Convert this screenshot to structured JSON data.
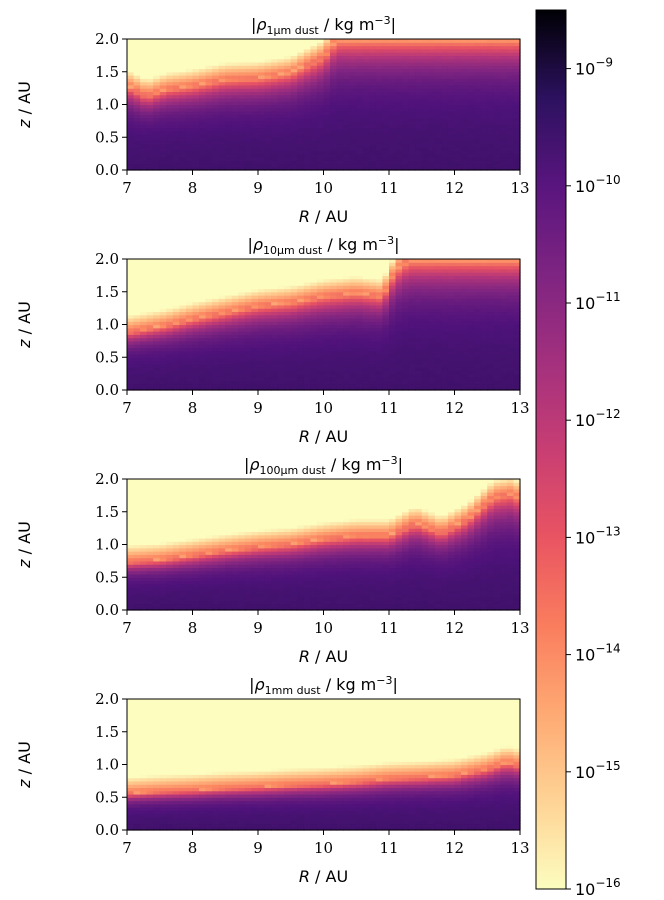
{
  "figure": {
    "colormap": "magma",
    "scale": "log"
  },
  "chart_data": [
    {
      "type": "heatmap",
      "title": "|ρ1μm dust / kg m−3|",
      "title_parts": {
        "open": "|",
        "rho": "ρ",
        "sub": "1μm dust",
        "unit": " / kg m",
        "exp": "−3",
        "close": "|"
      },
      "xlabel": "R / AU",
      "ylabel": "z / AU",
      "xlim": [
        7,
        13
      ],
      "ylim": [
        0.0,
        2.0
      ],
      "xticks": [
        "7",
        "8",
        "9",
        "10",
        "11",
        "12",
        "13"
      ],
      "yticks": [
        "0.0",
        "0.5",
        "1.0",
        "1.5",
        "2.0"
      ],
      "surface_R": [
        7.0,
        7.3,
        7.6,
        8.0,
        8.5,
        9.0,
        9.5,
        10.0,
        10.2,
        10.5,
        11.0,
        11.5,
        12.0,
        12.5,
        13.0
      ],
      "surface_z": [
        1.3,
        1.15,
        1.25,
        1.3,
        1.4,
        1.42,
        1.5,
        1.75,
        2.0,
        2.0,
        2.0,
        2.0,
        2.0,
        2.0,
        2.0
      ],
      "midplane_log_rho": -10.1
    },
    {
      "type": "heatmap",
      "title": "|ρ10μm dust / kg m−3|",
      "title_parts": {
        "open": "|",
        "rho": "ρ",
        "sub": "10μm dust",
        "unit": " / kg m",
        "exp": "−3",
        "close": "|"
      },
      "xlabel": "R / AU",
      "ylabel": "z / AU",
      "xlim": [
        7,
        13
      ],
      "ylim": [
        0.0,
        2.0
      ],
      "xticks": [
        "7",
        "8",
        "9",
        "10",
        "11",
        "12",
        "13"
      ],
      "yticks": [
        "0.0",
        "0.5",
        "1.0",
        "1.5",
        "2.0"
      ],
      "surface_R": [
        7.0,
        7.3,
        7.6,
        8.0,
        8.5,
        9.0,
        9.5,
        10.0,
        10.5,
        10.9,
        11.1,
        11.3,
        12.0,
        12.5,
        13.0
      ],
      "surface_z": [
        0.9,
        0.95,
        1.0,
        1.1,
        1.2,
        1.3,
        1.35,
        1.45,
        1.5,
        1.45,
        1.85,
        2.0,
        2.0,
        2.0,
        2.0
      ],
      "midplane_log_rho": -10.1
    },
    {
      "type": "heatmap",
      "title": "|ρ100μm dust / kg m−3|",
      "title_parts": {
        "open": "|",
        "rho": "ρ",
        "sub": "100μm dust",
        "unit": " / kg m",
        "exp": "−3",
        "close": "|"
      },
      "xlabel": "R / AU",
      "ylabel": "z / AU",
      "xticks": [
        "7",
        "8",
        "9",
        "10",
        "11",
        "12",
        "13"
      ],
      "yticks": [
        "0.0",
        "0.5",
        "1.0",
        "1.5",
        "2.0"
      ],
      "xlim": [
        7,
        13
      ],
      "ylim": [
        0.0,
        2.0
      ],
      "surface_R": [
        7.0,
        7.5,
        8.0,
        8.5,
        9.0,
        9.5,
        10.0,
        10.5,
        11.0,
        11.4,
        11.8,
        12.2,
        12.6,
        12.9,
        13.0
      ],
      "surface_z": [
        0.75,
        0.78,
        0.85,
        0.92,
        0.98,
        1.02,
        1.1,
        1.15,
        1.15,
        1.35,
        1.2,
        1.4,
        1.75,
        1.8,
        1.7
      ],
      "midplane_log_rho": -10.1
    },
    {
      "type": "heatmap",
      "title": "|ρ1mm dust / kg m−3|",
      "title_parts": {
        "open": "|",
        "rho": "ρ",
        "sub": "1mm dust",
        "unit": " / kg m",
        "exp": "−3",
        "close": "|"
      },
      "xlabel": "R / AU",
      "ylabel": "z / AU",
      "xlim": [
        7,
        13
      ],
      "ylim": [
        0.0,
        2.0
      ],
      "xticks": [
        "7",
        "8",
        "9",
        "10",
        "11",
        "12",
        "13"
      ],
      "yticks": [
        "0.0",
        "0.5",
        "1.0",
        "1.5",
        "2.0"
      ],
      "surface_R": [
        7.0,
        7.5,
        8.0,
        8.5,
        9.0,
        9.5,
        10.0,
        10.5,
        11.0,
        11.5,
        12.0,
        12.5,
        12.8,
        13.0
      ],
      "surface_z": [
        0.57,
        0.6,
        0.62,
        0.65,
        0.67,
        0.7,
        0.72,
        0.75,
        0.8,
        0.82,
        0.85,
        0.95,
        1.05,
        1.0
      ],
      "midplane_log_rho": -10.1
    }
  ],
  "colorbar": {
    "range_log": [
      -16,
      -8.5
    ],
    "ticks": [
      {
        "exp": -9,
        "base": "10",
        "label": "−9"
      },
      {
        "exp": -10,
        "base": "10",
        "label": "−10"
      },
      {
        "exp": -11,
        "base": "10",
        "label": "−11"
      },
      {
        "exp": -12,
        "base": "10",
        "label": "−12"
      },
      {
        "exp": -13,
        "base": "10",
        "label": "−13"
      },
      {
        "exp": -14,
        "base": "10",
        "label": "−14"
      },
      {
        "exp": -15,
        "base": "10",
        "label": "−15"
      },
      {
        "exp": -16,
        "base": "10",
        "label": "−16"
      }
    ]
  }
}
